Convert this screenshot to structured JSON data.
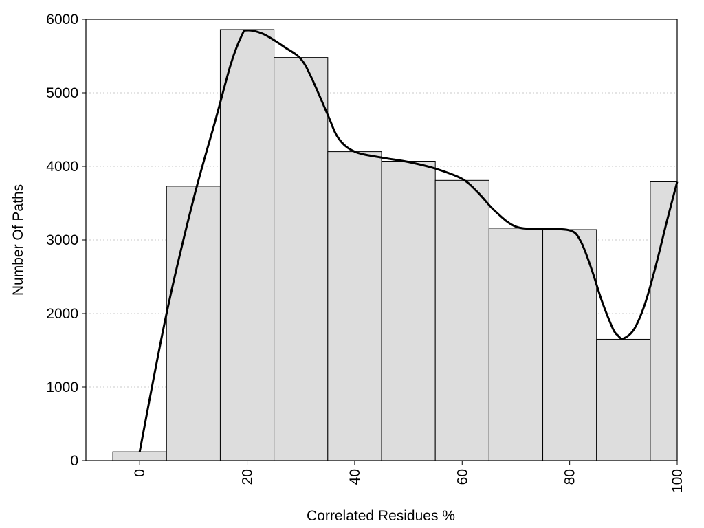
{
  "chart_data": {
    "type": "bar",
    "title": "",
    "xlabel": "Correlated Residues %",
    "ylabel": "Number Of Paths",
    "xlim": [
      -10,
      100
    ],
    "ylim": [
      0,
      6000
    ],
    "x_ticks": [
      0,
      20,
      40,
      60,
      80,
      100
    ],
    "y_ticks": [
      0,
      1000,
      2000,
      3000,
      4000,
      5000,
      6000
    ],
    "grid": "horizontal dotted",
    "bar_color": "#dddddd",
    "bar_edge_color": "#000000",
    "bins": [
      {
        "from": -5,
        "to": 5,
        "value": 120
      },
      {
        "from": 5,
        "to": 15,
        "value": 3730
      },
      {
        "from": 15,
        "to": 25,
        "value": 5860
      },
      {
        "from": 25,
        "to": 35,
        "value": 5480
      },
      {
        "from": 35,
        "to": 45,
        "value": 4200
      },
      {
        "from": 45,
        "to": 55,
        "value": 4070
      },
      {
        "from": 55,
        "to": 65,
        "value": 3810
      },
      {
        "from": 65,
        "to": 75,
        "value": 3160
      },
      {
        "from": 75,
        "to": 85,
        "value": 3140
      },
      {
        "from": 85,
        "to": 95,
        "value": 1650
      },
      {
        "from": 95,
        "to": 100,
        "value": 3790
      }
    ],
    "curve": {
      "x": [
        0,
        5,
        10,
        14,
        17,
        19,
        20,
        23,
        27,
        30,
        32,
        35,
        37,
        40,
        45,
        50,
        55,
        60,
        63,
        66,
        70,
        75,
        80,
        82,
        84,
        86,
        88,
        89,
        90,
        92,
        94,
        96,
        98,
        100
      ],
      "y": [
        120,
        2000,
        3550,
        4600,
        5400,
        5780,
        5850,
        5800,
        5620,
        5460,
        5200,
        4700,
        4380,
        4200,
        4120,
        4060,
        3970,
        3830,
        3640,
        3400,
        3180,
        3150,
        3130,
        2990,
        2620,
        2170,
        1800,
        1700,
        1660,
        1790,
        2130,
        2640,
        3230,
        3790
      ],
      "color": "#000000"
    }
  }
}
